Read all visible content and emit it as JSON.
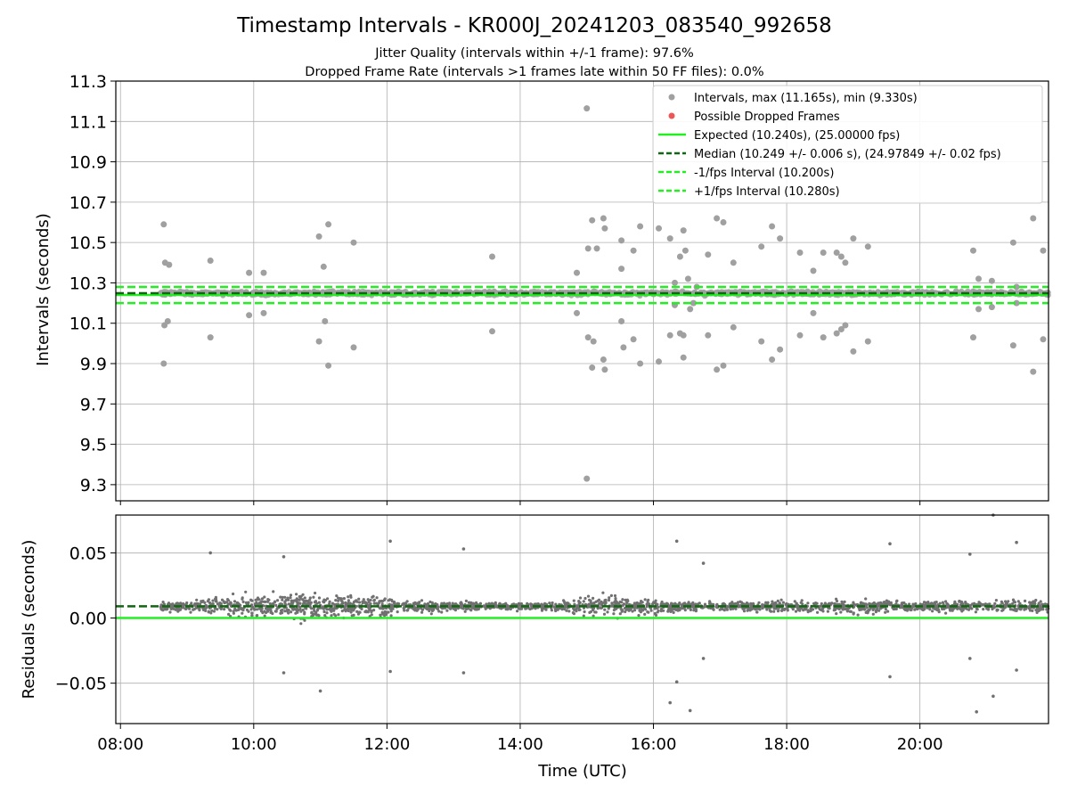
{
  "chart_data": [
    {
      "type": "scatter",
      "title": "Timestamp Intervals - KR000J_20241203_083540_992658",
      "subtitle_lines": [
        "Jitter Quality (intervals within +/-1 frame): 97.6%",
        "Dropped Frame Rate (intervals >1 frames late within 50 FF files): 0.0%"
      ],
      "xlabel": "",
      "ylabel": "Intervals (seconds)",
      "x_range_hours": [
        7.93,
        21.93
      ],
      "ylim": [
        9.22,
        11.3
      ],
      "y_ticks": [
        9.3,
        9.5,
        9.7,
        9.9,
        10.1,
        10.3,
        10.5,
        10.7,
        10.9,
        11.1,
        11.3
      ],
      "y_tick_labels": [
        "9.3",
        "9.5",
        "9.7",
        "9.9",
        "10.1",
        "10.3",
        "10.5",
        "10.7",
        "10.9",
        "11.1",
        "11.3"
      ],
      "grid": true,
      "legend_position": "top-right",
      "legend": [
        "Intervals, max (11.165s), min (9.330s)",
        "Possible Dropped Frames",
        "Expected (10.240s), (25.00000 fps)",
        "Median (10.249 +/- 0.006 s), (24.97849 +/- 0.02 fps)",
        "-1/fps Interval (10.200s)",
        "+1/fps Interval (10.280s)"
      ],
      "reference_lines": [
        {
          "name": "Expected",
          "y": 10.24,
          "color": "#22ee22",
          "style": "solid"
        },
        {
          "name": "Median",
          "y": 10.249,
          "color": "#116611",
          "style": "dashed"
        },
        {
          "name": "-1/fps Interval",
          "y": 10.2,
          "color": "#22ee22",
          "style": "dashed"
        },
        {
          "name": "+1/fps Interval",
          "y": 10.28,
          "color": "#22ee22",
          "style": "dashed"
        }
      ],
      "series": [
        {
          "marker_color": "#a0a0a0",
          "points": [
            [
              8.65,
              10.59
            ],
            [
              8.67,
              10.4
            ],
            [
              8.73,
              10.39
            ],
            [
              8.66,
              10.09
            ],
            [
              8.71,
              10.11
            ],
            [
              8.65,
              9.9
            ],
            [
              9.35,
              10.41
            ],
            [
              9.35,
              10.03
            ],
            [
              9.93,
              10.35
            ],
            [
              9.93,
              10.14
            ],
            [
              10.15,
              10.35
            ],
            [
              10.15,
              10.15
            ],
            [
              10.98,
              10.53
            ],
            [
              11.05,
              10.38
            ],
            [
              11.12,
              10.59
            ],
            [
              10.98,
              10.01
            ],
            [
              11.07,
              10.11
            ],
            [
              11.12,
              9.89
            ],
            [
              11.5,
              10.5
            ],
            [
              11.5,
              9.98
            ],
            [
              13.58,
              10.43
            ],
            [
              13.58,
              10.06
            ],
            [
              14.85,
              10.35
            ],
            [
              14.85,
              10.15
            ],
            [
              15.02,
              10.47
            ],
            [
              15.08,
              10.61
            ],
            [
              15.15,
              10.47
            ],
            [
              15.25,
              10.62
            ],
            [
              15.27,
              10.57
            ],
            [
              15.02,
              10.03
            ],
            [
              15.1,
              10.01
            ],
            [
              15.08,
              9.88
            ],
            [
              15.25,
              9.92
            ],
            [
              15.27,
              9.87
            ],
            [
              15.52,
              10.51
            ],
            [
              15.52,
              10.37
            ],
            [
              15.52,
              10.11
            ],
            [
              15.55,
              9.98
            ],
            [
              15.7,
              10.46
            ],
            [
              15.7,
              10.02
            ],
            [
              15.8,
              10.58
            ],
            [
              15.8,
              9.9
            ],
            [
              16.08,
              10.57
            ],
            [
              16.08,
              9.91
            ],
            [
              16.25,
              10.52
            ],
            [
              16.25,
              10.04
            ],
            [
              16.32,
              10.3
            ],
            [
              16.32,
              10.19
            ],
            [
              16.4,
              10.43
            ],
            [
              16.45,
              10.56
            ],
            [
              16.48,
              10.46
            ],
            [
              16.52,
              10.32
            ],
            [
              16.4,
              10.05
            ],
            [
              16.45,
              10.04
            ],
            [
              16.45,
              9.93
            ],
            [
              16.55,
              10.17
            ],
            [
              16.6,
              10.2
            ],
            [
              16.65,
              10.28
            ],
            [
              16.82,
              10.44
            ],
            [
              16.82,
              10.04
            ],
            [
              16.95,
              10.62
            ],
            [
              17.05,
              10.6
            ],
            [
              16.95,
              9.87
            ],
            [
              17.05,
              9.89
            ],
            [
              17.2,
              10.4
            ],
            [
              17.2,
              10.08
            ],
            [
              17.62,
              10.48
            ],
            [
              17.62,
              10.01
            ],
            [
              17.78,
              10.58
            ],
            [
              17.78,
              9.92
            ],
            [
              17.9,
              10.52
            ],
            [
              17.9,
              9.97
            ],
            [
              18.2,
              10.45
            ],
            [
              18.2,
              10.04
            ],
            [
              18.4,
              10.36
            ],
            [
              18.4,
              10.15
            ],
            [
              18.55,
              10.45
            ],
            [
              18.55,
              10.03
            ],
            [
              18.75,
              10.45
            ],
            [
              18.82,
              10.43
            ],
            [
              18.88,
              10.4
            ],
            [
              18.75,
              10.05
            ],
            [
              18.82,
              10.07
            ],
            [
              18.88,
              10.09
            ],
            [
              19.0,
              10.52
            ],
            [
              19.0,
              9.96
            ],
            [
              19.22,
              10.48
            ],
            [
              19.22,
              10.01
            ],
            [
              20.8,
              10.46
            ],
            [
              20.8,
              10.03
            ],
            [
              20.88,
              10.32
            ],
            [
              20.88,
              10.17
            ],
            [
              21.08,
              10.31
            ],
            [
              21.08,
              10.18
            ],
            [
              21.4,
              10.5
            ],
            [
              21.4,
              9.99
            ],
            [
              21.45,
              10.28
            ],
            [
              21.45,
              10.2
            ],
            [
              21.7,
              10.62
            ],
            [
              21.7,
              9.86
            ],
            [
              21.85,
              10.46
            ],
            [
              21.85,
              10.02
            ],
            [
              15.0,
              11.165
            ],
            [
              15.0,
              9.33
            ]
          ]
        }
      ]
    },
    {
      "type": "scatter",
      "xlabel": "Time (UTC)",
      "ylabel": "Residuals (seconds)",
      "ylim": [
        -0.081,
        0.079
      ],
      "x_range_hours": [
        7.93,
        21.93
      ],
      "x_ticks_hours": [
        8,
        10,
        12,
        14,
        16,
        18,
        20
      ],
      "x_tick_labels": [
        "08:00",
        "10:00",
        "12:00",
        "14:00",
        "16:00",
        "18:00",
        "20:00"
      ],
      "y_ticks": [
        -0.05,
        0.0,
        0.05
      ],
      "y_tick_labels": [
        "−0.05",
        "0.00",
        "0.05"
      ],
      "grid": true,
      "reference_lines": [
        {
          "name": "Expected",
          "y": 0.0,
          "color": "#22ee22",
          "style": "solid"
        },
        {
          "name": "Median",
          "y": 0.009,
          "color": "#116611",
          "style": "dashed"
        }
      ],
      "series": [
        {
          "marker_color": "#707070",
          "start_hour": 8.6,
          "end_hour": 21.93,
          "center": 0.009,
          "approx_count": 2300,
          "spread_profile": [
            [
              8.6,
              0.004
            ],
            [
              9.0,
              0.006
            ],
            [
              9.5,
              0.01
            ],
            [
              10.0,
              0.012
            ],
            [
              11.0,
              0.013
            ],
            [
              11.8,
              0.012
            ],
            [
              12.3,
              0.006
            ],
            [
              13.5,
              0.004
            ],
            [
              14.6,
              0.004
            ],
            [
              15.0,
              0.01
            ],
            [
              15.4,
              0.01
            ],
            [
              16.0,
              0.007
            ],
            [
              17.0,
              0.004
            ],
            [
              18.0,
              0.006
            ],
            [
              19.0,
              0.008
            ],
            [
              20.0,
              0.005
            ],
            [
              21.0,
              0.006
            ],
            [
              21.93,
              0.006
            ]
          ],
          "outliers": [
            [
              9.35,
              0.05
            ],
            [
              10.45,
              0.047
            ],
            [
              12.05,
              0.059
            ],
            [
              13.15,
              0.053
            ],
            [
              16.35,
              0.059
            ],
            [
              16.75,
              0.042
            ],
            [
              19.55,
              0.057
            ],
            [
              20.75,
              0.049
            ],
            [
              21.1,
              0.079
            ],
            [
              21.45,
              0.058
            ],
            [
              10.45,
              -0.042
            ],
            [
              11.0,
              -0.056
            ],
            [
              12.05,
              -0.041
            ],
            [
              13.15,
              -0.042
            ],
            [
              16.25,
              -0.065
            ],
            [
              16.35,
              -0.049
            ],
            [
              16.55,
              -0.071
            ],
            [
              16.75,
              -0.031
            ],
            [
              19.55,
              -0.045
            ],
            [
              20.75,
              -0.031
            ],
            [
              20.85,
              -0.072
            ],
            [
              21.1,
              -0.06
            ],
            [
              21.45,
              -0.04
            ]
          ]
        }
      ]
    }
  ]
}
